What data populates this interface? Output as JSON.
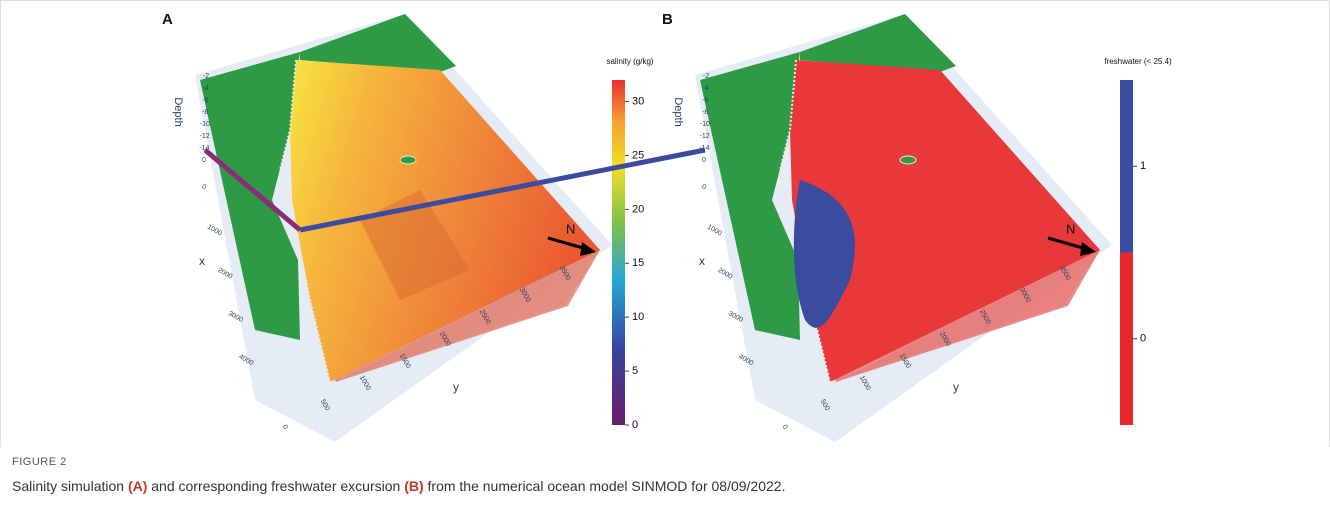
{
  "panels": [
    {
      "label": "A",
      "colorbar": {
        "title": "salinity (g/kg)",
        "ticks": [
          0,
          5,
          10,
          15,
          20,
          25,
          30
        ],
        "colorlim": [
          0,
          32
        ]
      },
      "axes": {
        "depth": {
          "title": "Depth",
          "ticks": [
            -2,
            -4,
            -6,
            -8,
            -10,
            -12,
            -14,
            0
          ]
        },
        "x": {
          "title": "x",
          "ticks": [
            0,
            1000,
            2000,
            3000,
            4000
          ]
        },
        "y": {
          "title": "y",
          "ticks": [
            0,
            500,
            1000,
            1500,
            2000,
            2500,
            3000,
            3500
          ]
        }
      },
      "north": "N"
    },
    {
      "label": "B",
      "colorbar": {
        "title": "freshwater (< 25.4)",
        "ticks": [
          0,
          1
        ],
        "colorlim": [
          -0.5,
          1.5
        ],
        "colors": [
          "#e8282c",
          "#3a4ba0"
        ]
      },
      "axes": {
        "depth": {
          "title": "Depth",
          "ticks": [
            -2,
            -4,
            -6,
            -8,
            -10,
            -12,
            -14,
            0
          ]
        },
        "x": {
          "title": "x",
          "ticks": [
            0,
            1000,
            2000,
            3000,
            4000
          ]
        },
        "y": {
          "title": "y",
          "ticks": [
            0,
            500,
            1000,
            1500,
            2000,
            2500,
            3000,
            3500
          ]
        }
      },
      "north": "N"
    }
  ],
  "figure": {
    "label": "FIGURE 2",
    "caption": [
      "Salinity simulation ",
      "(A)",
      " and corresponding freshwater excursion ",
      "(B)",
      " from the numerical ocean model SINMOD for 08/09/2022."
    ]
  }
}
